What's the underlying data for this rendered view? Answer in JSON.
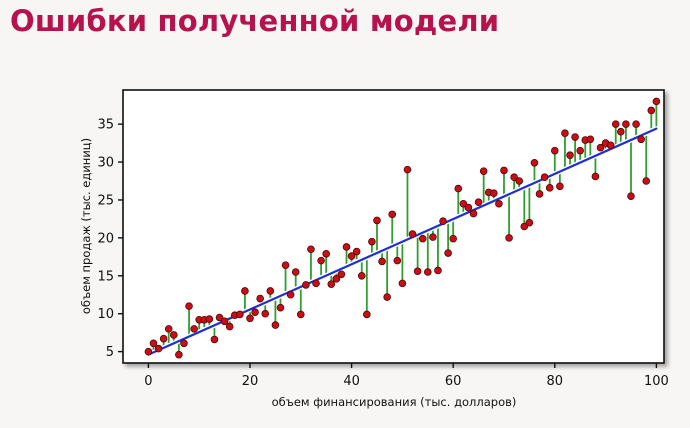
{
  "slide": {
    "title": "Ошибки полученной модели"
  },
  "chart_data": {
    "type": "scatter",
    "title": "",
    "xlabel": "объем финансирования (тыс. долларов)",
    "ylabel": "объем продаж (тыс. единиц)",
    "xlim": [
      -5,
      101.5
    ],
    "ylim": [
      3.5,
      39.5
    ],
    "xticks": [
      0,
      20,
      40,
      60,
      80,
      100
    ],
    "yticks": [
      5,
      10,
      15,
      20,
      25,
      30,
      35
    ],
    "grid": false,
    "legend": "none",
    "colors": {
      "points": "#c41018",
      "point_edge": "#5a0000",
      "fit_line": "#1f2fd6",
      "residuals": "#2e9e2e"
    },
    "fit_line": {
      "slope": 0.298,
      "intercept": 4.6,
      "x_range": [
        0,
        100
      ]
    },
    "series": [
      {
        "kind": "points",
        "x": [
          0,
          1,
          2,
          3,
          4,
          5,
          6,
          7,
          8,
          9,
          10,
          11,
          12,
          13,
          14,
          15,
          16,
          17,
          18,
          19,
          20,
          21,
          22,
          23,
          24,
          25,
          26,
          27,
          28,
          29,
          30,
          31,
          32,
          33,
          34,
          35,
          36,
          37,
          38,
          39,
          40,
          41,
          42,
          43,
          44,
          45,
          46,
          47,
          48,
          49,
          50,
          51,
          52,
          53,
          54,
          55,
          56,
          57,
          58,
          59,
          60,
          61,
          62,
          63,
          64,
          65,
          66,
          67,
          68,
          69,
          70,
          71,
          72,
          73,
          74,
          75,
          76,
          77,
          78,
          79,
          80,
          81,
          82,
          83,
          84,
          85,
          86,
          87,
          88,
          89,
          90,
          91,
          92,
          93,
          94,
          95,
          96,
          97,
          98,
          99,
          100
        ],
        "y": [
          5.0,
          6.1,
          5.4,
          6.7,
          8.0,
          7.2,
          4.6,
          6.1,
          11.0,
          8.0,
          9.2,
          9.2,
          9.3,
          6.6,
          9.5,
          9.0,
          8.3,
          9.8,
          9.9,
          13.0,
          9.4,
          10.2,
          12.0,
          10.0,
          13.0,
          8.5,
          10.8,
          16.4,
          12.5,
          15.5,
          9.9,
          13.8,
          18.5,
          14.0,
          17.0,
          17.9,
          13.9,
          14.6,
          15.2,
          18.8,
          17.6,
          18.2,
          15.0,
          9.9,
          19.5,
          22.3,
          16.9,
          12.2,
          23.1,
          17.0,
          14.0,
          29.0,
          20.5,
          15.6,
          19.9,
          15.5,
          20.1,
          15.7,
          22.2,
          18.0,
          19.9,
          26.5,
          24.5,
          24.0,
          23.2,
          24.7,
          28.8,
          26.0,
          25.9,
          24.5,
          28.9,
          20.0,
          28.0,
          27.5,
          21.5,
          22.0,
          29.9,
          25.8,
          28.0,
          26.6,
          31.5,
          26.8,
          33.8,
          30.9,
          33.3,
          31.5,
          32.9,
          33.0,
          28.1,
          31.9,
          32.5,
          32.2,
          35.0,
          34.0,
          35.0,
          25.5,
          35.0,
          33.0,
          27.5,
          36.8,
          38.0
        ]
      }
    ]
  }
}
